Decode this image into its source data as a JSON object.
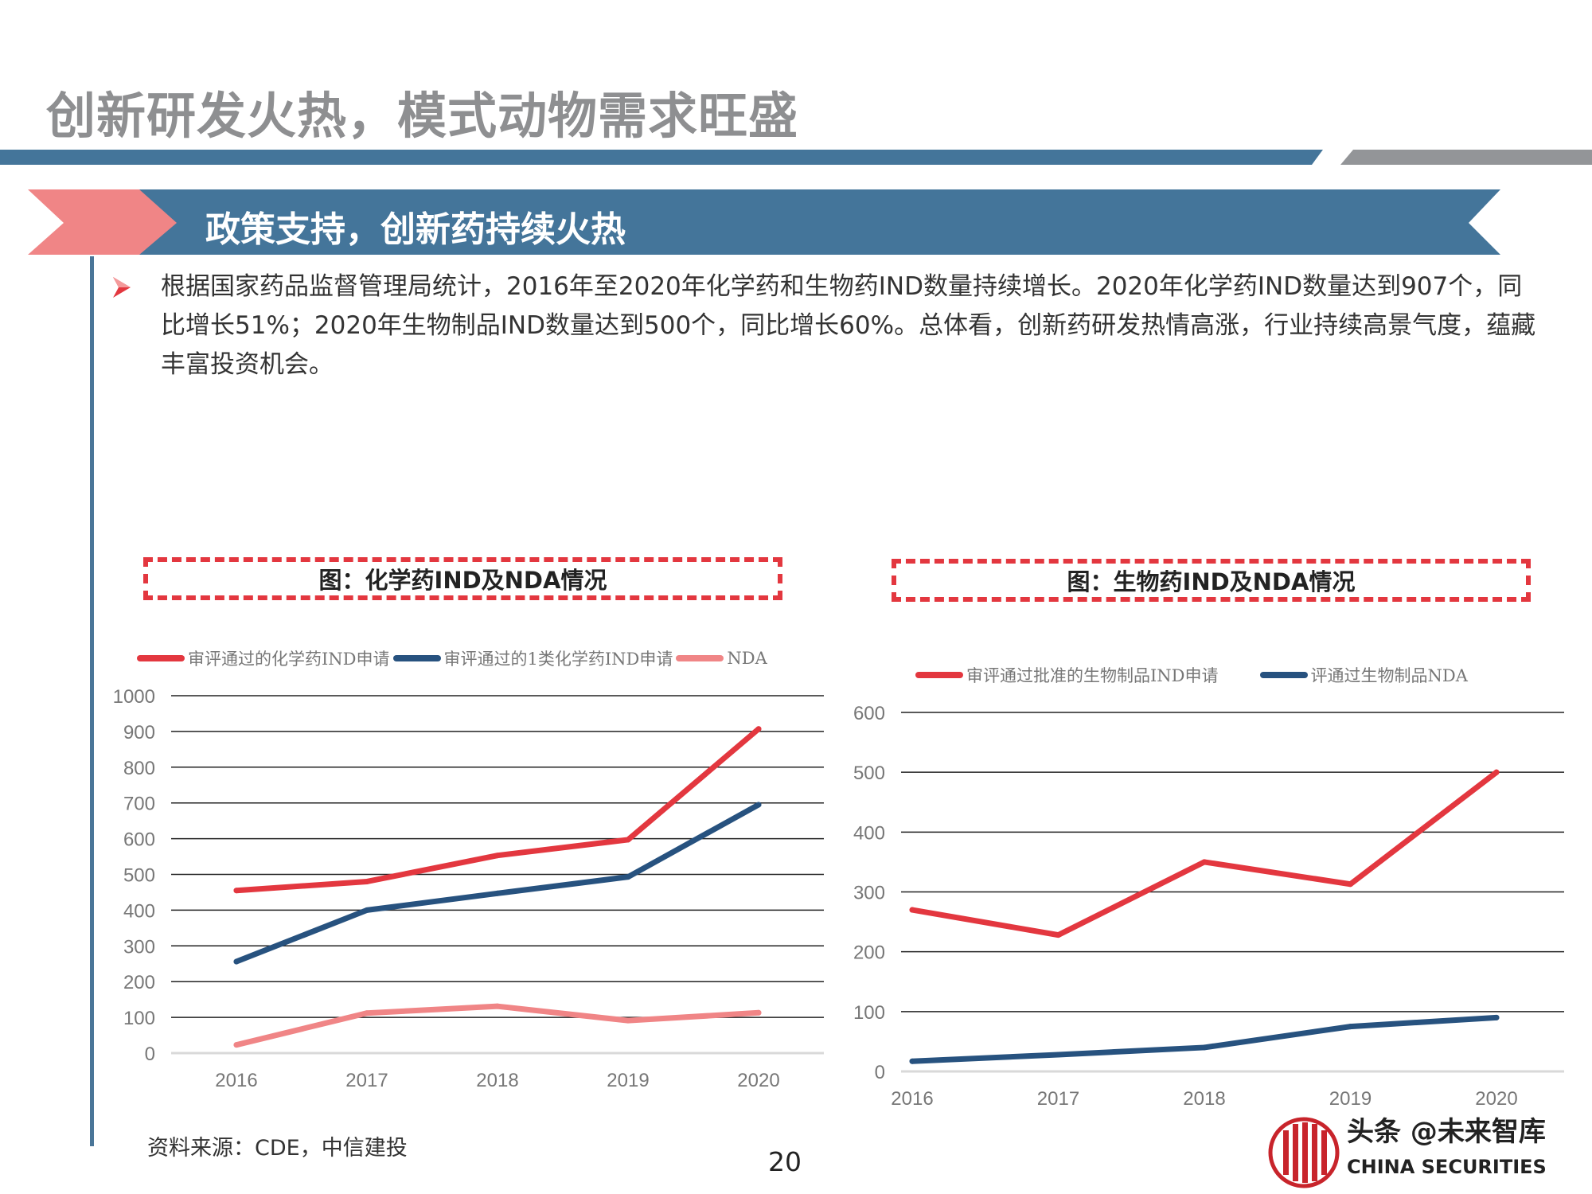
{
  "slide": {
    "title": "创新研发火热，模式动物需求旺盛",
    "section_title": "政策支持，创新药持续火热",
    "bullet_text": "根据国家药品监督管理局统计，2016年至2020年化学药和生物药IND数量持续增长。2020年化学药IND数量达到907个，同比增长51%；2020年生物制品IND数量达到500个，同比增长60%。总体看，创新药研发热情高涨，行业持续高景气度，蕴藏丰富投资机会。",
    "source_note": "资料来源：CDE，中信建投",
    "page_number": "20",
    "watermark": "头条 @未来智库",
    "watermark_sub": "CHINA SECURITIES"
  },
  "colors": {
    "title_gray": "#8e8f91",
    "brand_blue": "#44759a",
    "bar_gray": "#939598",
    "accent_pink": "#f08586",
    "series_red": "#e3373f",
    "series_navy": "#27527f",
    "series_pink": "#f08586"
  },
  "chart_data": [
    {
      "type": "line",
      "title": "图：化学药IND及NDA情况",
      "xlabel": "",
      "ylabel": "",
      "categories": [
        "2016",
        "2017",
        "2018",
        "2019",
        "2020"
      ],
      "ylim": [
        0,
        1000
      ],
      "yticks": [
        0,
        100,
        200,
        300,
        400,
        500,
        600,
        700,
        800,
        900,
        1000
      ],
      "grid": true,
      "legend_position": "top",
      "series": [
        {
          "name": "审评通过的化学药IND申请",
          "color": "#e3373f",
          "values": [
            455,
            480,
            553,
            597,
            907
          ]
        },
        {
          "name": "审评通过的1类化学药IND申请",
          "color": "#27527f",
          "values": [
            256,
            400,
            447,
            493,
            695
          ]
        },
        {
          "name": "NDA",
          "color": "#f08586",
          "values": [
            23,
            112,
            131,
            91,
            113
          ]
        }
      ]
    },
    {
      "type": "line",
      "title": "图：生物药IND及NDA情况",
      "xlabel": "",
      "ylabel": "",
      "categories": [
        "2016",
        "2017",
        "2018",
        "2019",
        "2020"
      ],
      "ylim": [
        0,
        600
      ],
      "yticks": [
        0,
        100,
        200,
        300,
        400,
        500,
        600
      ],
      "grid": true,
      "legend_position": "top",
      "series": [
        {
          "name": "审评通过批准的生物制品IND申请",
          "color": "#e3373f",
          "values": [
            270,
            228,
            350,
            313,
            500
          ]
        },
        {
          "name": "评通过生物制品NDA",
          "color": "#27527f",
          "values": [
            17,
            28,
            40,
            75,
            90
          ]
        }
      ]
    }
  ]
}
